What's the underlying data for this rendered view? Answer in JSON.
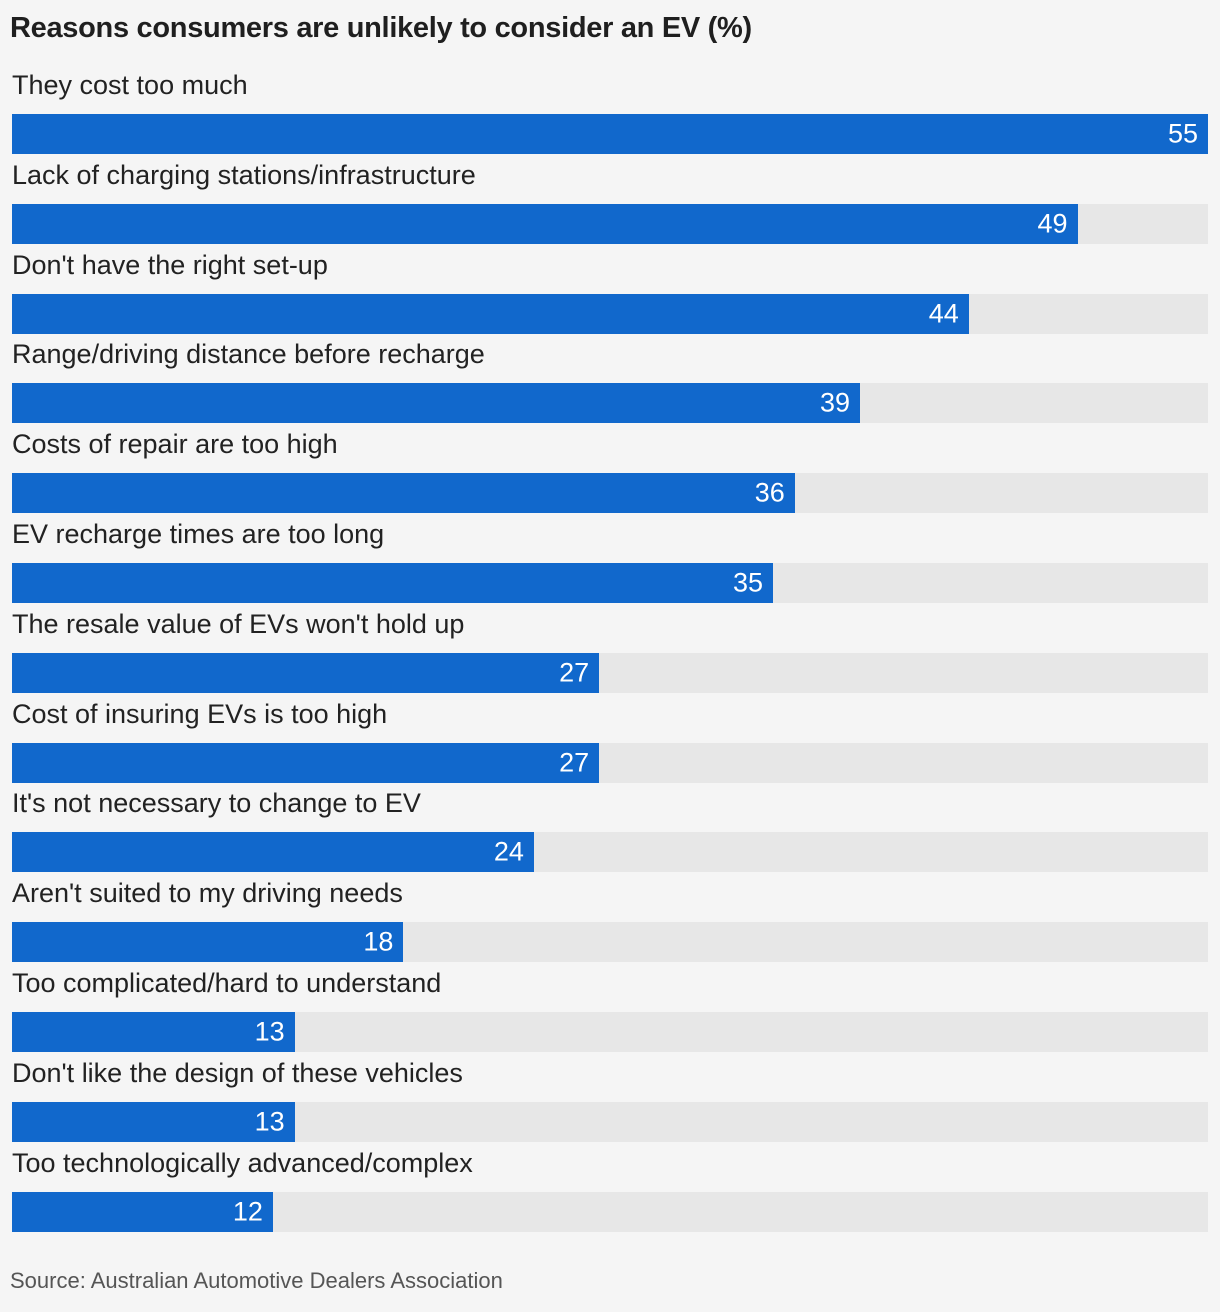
{
  "chart_data": {
    "type": "bar",
    "orientation": "horizontal",
    "title": "Reasons consumers are unlikely to consider an EV (%)",
    "xlabel": "",
    "ylabel": "",
    "xlim": [
      0,
      55
    ],
    "categories": [
      "They cost too much",
      "Lack of charging stations/infrastructure",
      "Don't have the right set-up",
      "Range/driving distance before recharge",
      "Costs of repair are too high",
      "EV recharge times are too long",
      "The resale value of EVs won't hold up",
      "Cost of insuring EVs is too high",
      "It's not necessary to change to EV",
      "Aren't suited to my driving needs",
      "Too complicated/hard to understand",
      "Don't like the design of these vehicles",
      "Too technologically advanced/complex"
    ],
    "values": [
      55,
      49,
      44,
      39,
      36,
      35,
      27,
      27,
      24,
      18,
      13,
      13,
      12
    ],
    "source": "Source: Australian Automotive Dealers Association"
  },
  "colors": {
    "bar": "#1168cc",
    "track": "#e7e7e7",
    "background": "#f5f5f5"
  }
}
